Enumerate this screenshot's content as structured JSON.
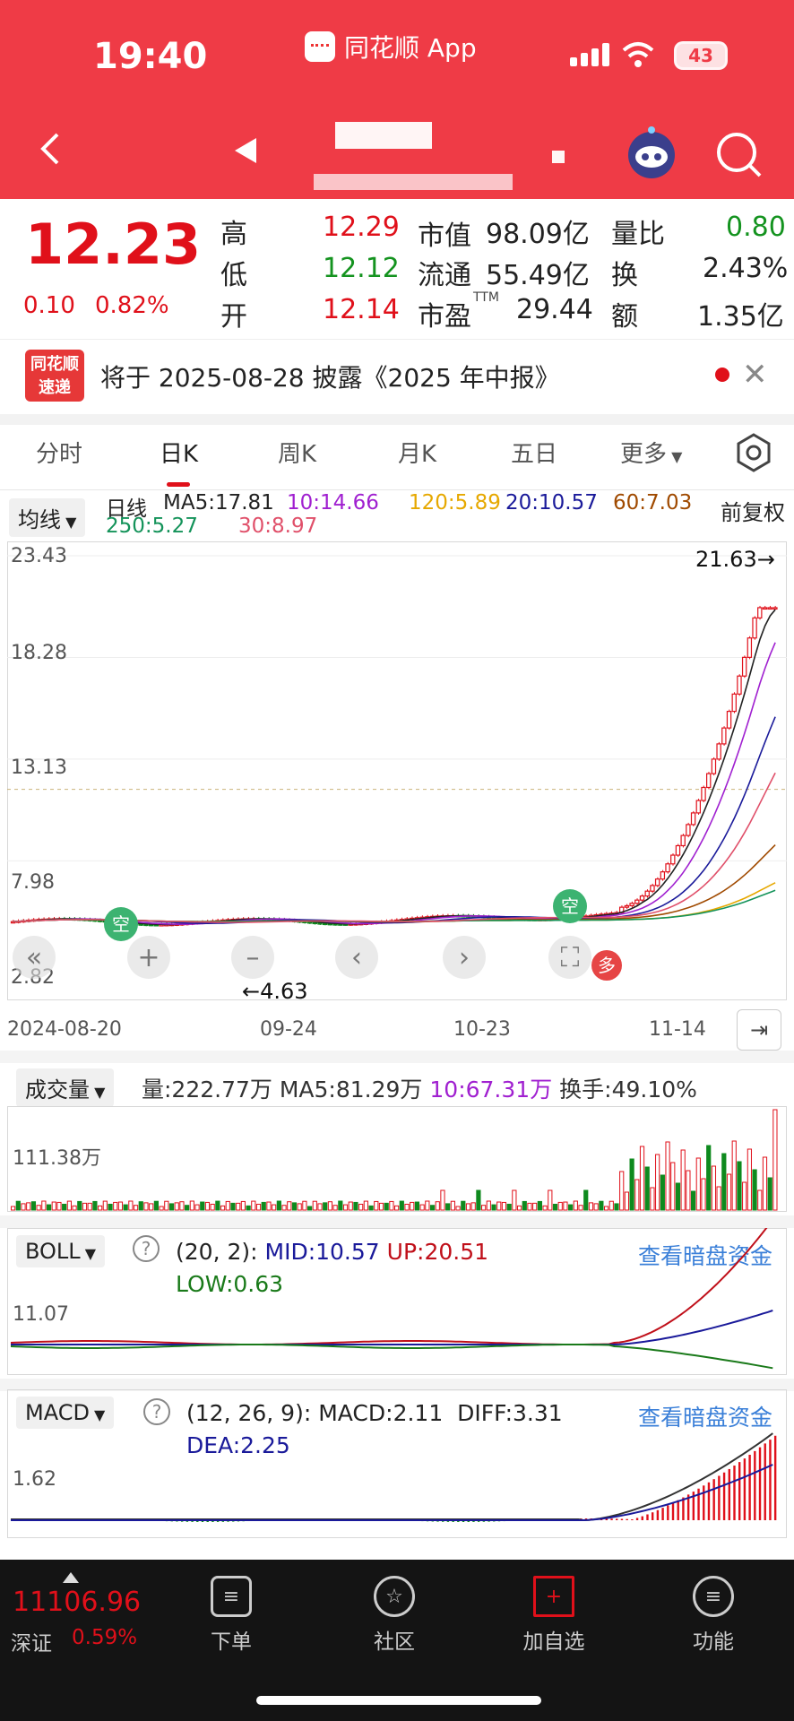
{
  "status": {
    "time": "19:40",
    "app_name": "同花顺 App",
    "battery": "43"
  },
  "quote": {
    "price": "12.23",
    "change": "0.10",
    "change_pct": "0.82%",
    "labels": {
      "high": "高",
      "low": "低",
      "open": "开",
      "mktcap": "市值",
      "float": "流通",
      "pe": "市盈",
      "pe_sup": "TTM",
      "vol_ratio": "量比",
      "turnover": "换",
      "amount": "额"
    },
    "values": {
      "high": "12.29",
      "low": "12.12",
      "open": "12.14",
      "mktcap": "98.09亿",
      "float": "55.49亿",
      "pe": "29.44",
      "vol_ratio": "0.80",
      "turnover": "2.43%",
      "amount": "1.35亿"
    }
  },
  "notice": {
    "logo": "同花顺 速递",
    "text": "将于 2025-08-28 披露《2025 年中报》"
  },
  "tabs": [
    "分时",
    "日K",
    "周K",
    "月K",
    "五日",
    "更多"
  ],
  "ma_bar": {
    "indicator": "均线",
    "title": "日线",
    "items": [
      {
        "label": "MA5:17.81",
        "color": "#222222"
      },
      {
        "label": "10:14.66",
        "color": "#a020d0"
      },
      {
        "label": "120:5.89",
        "color": "#e6a800"
      },
      {
        "label": "20:10.57",
        "color": "#1a1a9a"
      },
      {
        "label": "60:7.03",
        "color": "#a04a00"
      },
      {
        "label": "250:5.27",
        "color": "#14935a"
      },
      {
        "label": "30:8.97",
        "color": "#e0506a"
      }
    ],
    "adjust": "前复权"
  },
  "kchart": {
    "y_ticks": [
      "23.43",
      "18.28",
      "13.13",
      "7.98",
      "2.82"
    ],
    "x_ticks": [
      "2024-08-20",
      "09-24",
      "10-23",
      "11-14"
    ],
    "max_label": "21.63→",
    "min_label": "←4.63",
    "markers": {
      "empty1": "空",
      "empty2": "空",
      "long": "多"
    }
  },
  "volume": {
    "indicator": "成交量",
    "vol": "量:222.77万",
    "ma5": "MA5:81.29万",
    "ma10": "10:67.31万",
    "turnover": "换手:49.10%",
    "y_tick": "111.38万"
  },
  "boll": {
    "indicator": "BOLL",
    "params": "(20, 2):",
    "mid": "MID:10.57",
    "up": "UP:20.51",
    "low": "LOW:0.63",
    "y_tick": "11.07",
    "link": "查看暗盘资金"
  },
  "macd": {
    "indicator": "MACD",
    "params": "(12, 26, 9):",
    "macd": "MACD:2.11",
    "diff": "DIFF:3.31",
    "dea": "DEA:2.25",
    "y_tick": "1.62",
    "link": "查看暗盘资金"
  },
  "footer": {
    "index_value": "11106.96",
    "index_name": "深证",
    "index_pct": "0.59%",
    "buttons": [
      "下单",
      "社区",
      "加自选",
      "功能"
    ]
  }
}
